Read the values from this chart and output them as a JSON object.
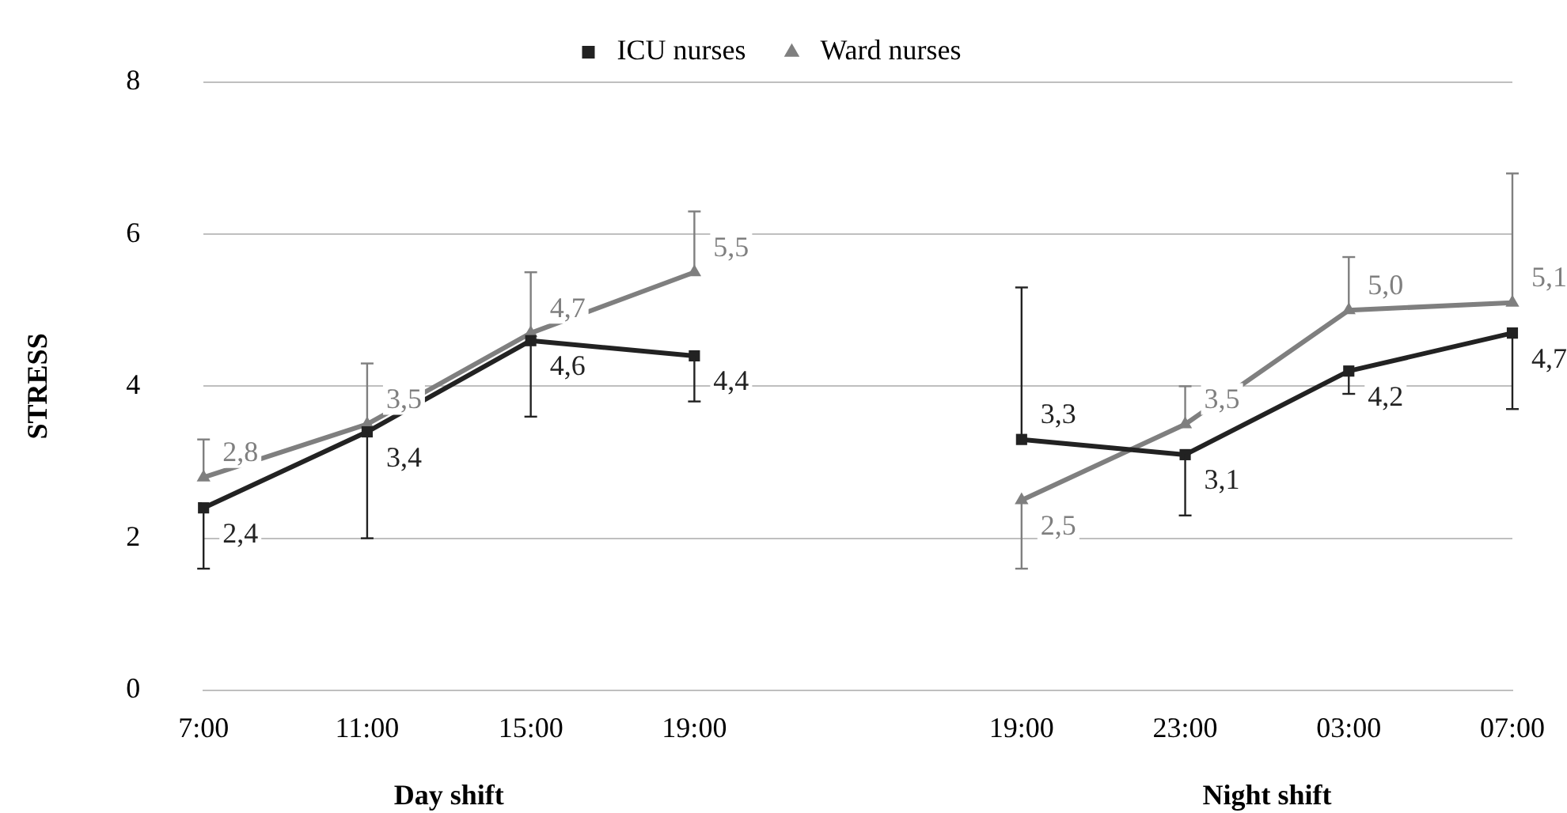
{
  "chart_data": {
    "type": "line",
    "ylabel": "STRESS",
    "categories": [
      "7:00",
      "11:00",
      "15:00",
      "19:00",
      null,
      "19:00",
      "23:00",
      "03:00",
      "07:00"
    ],
    "series": [
      {
        "name": "ICU nurses",
        "color": "#222222",
        "marker": "square",
        "values": [
          2.4,
          3.4,
          4.6,
          4.4,
          null,
          3.3,
          3.1,
          4.2,
          4.7
        ],
        "value_labels": [
          "2,4",
          "3,4",
          "4,6",
          "4,4",
          null,
          "3,3",
          "3,1",
          "4,2",
          "4,7"
        ],
        "errors": [
          [
            1.6,
            2.4
          ],
          [
            2.0,
            3.4
          ],
          [
            3.6,
            4.6
          ],
          [
            3.8,
            4.4
          ],
          null,
          [
            3.3,
            5.3
          ],
          [
            2.3,
            3.1
          ],
          [
            3.9,
            4.2
          ],
          [
            3.7,
            4.7
          ]
        ]
      },
      {
        "name": "Ward nurses",
        "color": "#7f7f7f",
        "marker": "triangle",
        "values": [
          2.8,
          3.5,
          4.7,
          5.5,
          null,
          2.5,
          3.5,
          5.0,
          5.1
        ],
        "value_labels": [
          "2,8",
          "3,5",
          "4,7",
          "5,5",
          null,
          "2,5",
          "3,5",
          "5,0",
          "5,1"
        ],
        "errors": [
          [
            2.8,
            3.3
          ],
          [
            3.5,
            4.3
          ],
          [
            4.7,
            5.5
          ],
          [
            5.5,
            6.3
          ],
          null,
          [
            1.6,
            2.5
          ],
          [
            3.5,
            4.0
          ],
          [
            5.0,
            5.7
          ],
          [
            5.1,
            6.8
          ]
        ]
      }
    ],
    "ylim": [
      0,
      8
    ],
    "yticks": [
      0,
      2,
      4,
      6,
      8
    ],
    "grid": "y",
    "legend": "top",
    "line_style": "solid",
    "annotations": [
      "Day shift",
      "Night shift"
    ]
  }
}
